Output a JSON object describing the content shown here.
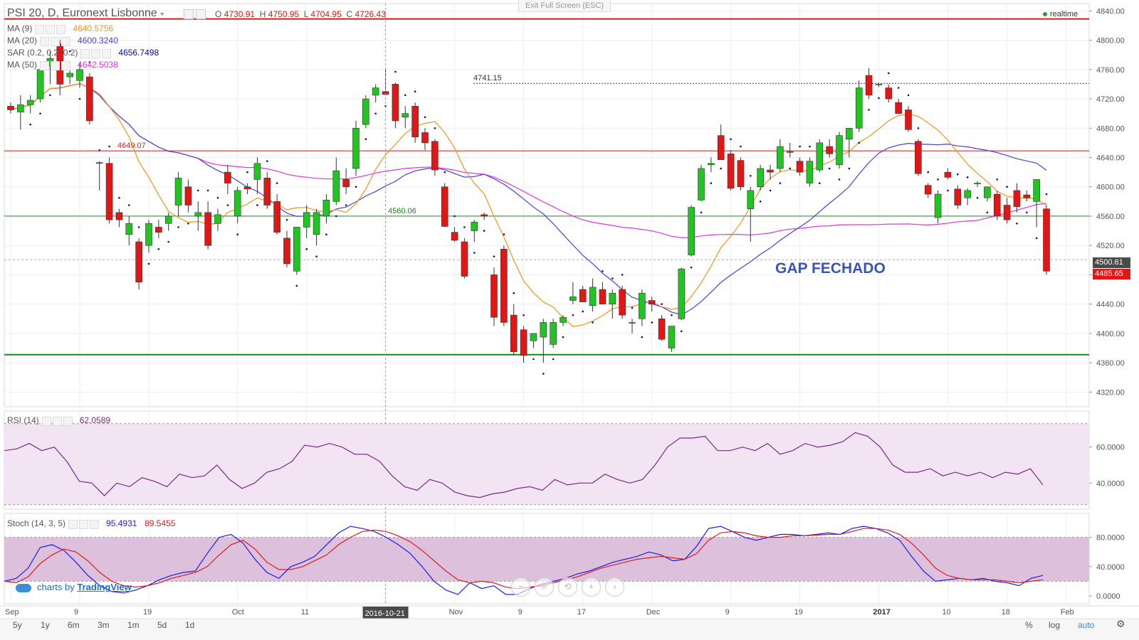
{
  "header": {
    "symbol": "PSI 20, D, Euronext Lisbonne",
    "o_label": "O",
    "o_value": "4730.91",
    "h_label": "H",
    "h_value": "4750.95",
    "l_label": "L",
    "l_value": "4704.95",
    "c_label": "C",
    "c_value": "4726.43"
  },
  "exit_fullscreen": "Exit Full Screen (ESC)",
  "realtime": "realtime",
  "indicators": [
    {
      "label": "MA (9)",
      "value": "4640.5756",
      "color": "#f0951c"
    },
    {
      "label": "MA (20)",
      "value": "4600.3240",
      "color": "#4a3fd8"
    },
    {
      "label": "SAR (0.2, 0.2, 0.2)",
      "value": "4656.7498",
      "color": "#0a0aa0"
    },
    {
      "label": "MA (50)",
      "value": "4642.5038",
      "color": "#e233e0"
    }
  ],
  "rsi": {
    "label": "RSI (14)",
    "value": "62.0589",
    "color": "#7a2a8a"
  },
  "stoch": {
    "label": "Stoch (14, 3, 5)",
    "k_value": "95.4931",
    "d_value": "89.5455",
    "k_color": "#1c1cf0",
    "d_color": "#e01c1c"
  },
  "annotation": {
    "gap_text": "GAP FECHADO",
    "hline_high": "4741.15",
    "hline_mid": "4649.07",
    "hline_low": "4560.06"
  },
  "price_tags": {
    "last": "4500.61",
    "current": "4485.65"
  },
  "cursor_date": "2016-10-21",
  "toolbar": {
    "ranges": [
      "5y",
      "1y",
      "6m",
      "3m",
      "1m",
      "5d",
      "1d"
    ],
    "right": [
      "%",
      "log",
      "auto"
    ]
  },
  "branding": {
    "prefix": "charts by",
    "name": "TradingView"
  },
  "colors": {
    "up": "#21c521",
    "down": "#e41515",
    "grid": "#ececec"
  },
  "chart_data": [
    {
      "type": "candlestick",
      "title": "PSI 20, D, Euronext Lisbonne",
      "y_ticks": [
        4320,
        4360,
        4400,
        4440,
        4480,
        4520,
        4560,
        4600,
        4640,
        4680,
        4720,
        4760,
        4800,
        4840
      ],
      "x_tick_labels": [
        "Sep",
        "9",
        "19",
        "Oct",
        "11",
        "Nov",
        "9",
        "17",
        "Dec",
        "9",
        "19",
        "2017",
        "10",
        "18",
        "Feb"
      ],
      "ylim": [
        4300,
        4850
      ],
      "horizontal_lines": [
        4829,
        4741.15,
        4649.07,
        4560.06,
        4371
      ],
      "candles": [
        {
          "o": 4710,
          "h": 4715,
          "l": 4700,
          "c": 4705
        },
        {
          "o": 4702,
          "h": 4725,
          "l": 4678,
          "c": 4712
        },
        {
          "o": 4712,
          "h": 4725,
          "l": 4700,
          "c": 4718
        },
        {
          "o": 4720,
          "h": 4770,
          "l": 4715,
          "c": 4760
        },
        {
          "o": 4765,
          "h": 4785,
          "l": 4740,
          "c": 4775
        },
        {
          "o": 4795,
          "h": 4800,
          "l": 4725,
          "c": 4740
        },
        {
          "o": 4750,
          "h": 4770,
          "l": 4740,
          "c": 4755
        },
        {
          "o": 4745,
          "h": 4770,
          "l": 4735,
          "c": 4760
        },
        {
          "o": 4750,
          "h": 4755,
          "l": 4685,
          "c": 4690
        },
        {
          "o": 4633,
          "h": 4635,
          "l": 4595,
          "c": 4632
        },
        {
          "o": 4632,
          "h": 4640,
          "l": 4550,
          "c": 4555
        },
        {
          "o": 4565,
          "h": 4570,
          "l": 4545,
          "c": 4555
        },
        {
          "o": 4535,
          "h": 4560,
          "l": 4520,
          "c": 4550
        },
        {
          "o": 4525,
          "h": 4530,
          "l": 4460,
          "c": 4470
        },
        {
          "o": 4520,
          "h": 4555,
          "l": 4510,
          "c": 4550
        },
        {
          "o": 4545,
          "h": 4555,
          "l": 4530,
          "c": 4538
        },
        {
          "o": 4550,
          "h": 4565,
          "l": 4540,
          "c": 4560
        },
        {
          "o": 4575,
          "h": 4620,
          "l": 4560,
          "c": 4612
        },
        {
          "o": 4600,
          "h": 4610,
          "l": 4565,
          "c": 4575
        },
        {
          "o": 4560,
          "h": 4580,
          "l": 4540,
          "c": 4565
        },
        {
          "o": 4565,
          "h": 4580,
          "l": 4515,
          "c": 4520
        },
        {
          "o": 4550,
          "h": 4570,
          "l": 4540,
          "c": 4562
        },
        {
          "o": 4620,
          "h": 4630,
          "l": 4590,
          "c": 4605
        },
        {
          "o": 4560,
          "h": 4600,
          "l": 4550,
          "c": 4595
        },
        {
          "o": 4600,
          "h": 4605,
          "l": 4590,
          "c": 4597
        },
        {
          "o": 4610,
          "h": 4640,
          "l": 4590,
          "c": 4632
        },
        {
          "o": 4612,
          "h": 4620,
          "l": 4570,
          "c": 4575
        },
        {
          "o": 4580,
          "h": 4590,
          "l": 4535,
          "c": 4538
        },
        {
          "o": 4530,
          "h": 4540,
          "l": 4490,
          "c": 4495
        },
        {
          "o": 4485,
          "h": 4545,
          "l": 4480,
          "c": 4545
        },
        {
          "o": 4545,
          "h": 4575,
          "l": 4530,
          "c": 4565
        },
        {
          "o": 4535,
          "h": 4570,
          "l": 4520,
          "c": 4565
        },
        {
          "o": 4560,
          "h": 4590,
          "l": 4550,
          "c": 4582
        },
        {
          "o": 4580,
          "h": 4640,
          "l": 4575,
          "c": 4622
        },
        {
          "o": 4610,
          "h": 4625,
          "l": 4590,
          "c": 4600
        },
        {
          "o": 4625,
          "h": 4690,
          "l": 4615,
          "c": 4680
        },
        {
          "o": 4685,
          "h": 4725,
          "l": 4680,
          "c": 4720
        },
        {
          "o": 4725,
          "h": 4740,
          "l": 4715,
          "c": 4735
        },
        {
          "o": 4730,
          "h": 4760,
          "l": 4725,
          "c": 4726
        },
        {
          "o": 4740,
          "h": 4742,
          "l": 4680,
          "c": 4690
        },
        {
          "o": 4695,
          "h": 4710,
          "l": 4680,
          "c": 4700
        },
        {
          "o": 4710,
          "h": 4715,
          "l": 4660,
          "c": 4668
        },
        {
          "o": 4674,
          "h": 4680,
          "l": 4650,
          "c": 4660
        },
        {
          "o": 4662,
          "h": 4665,
          "l": 4615,
          "c": 4623
        },
        {
          "o": 4600,
          "h": 4605,
          "l": 4545,
          "c": 4546
        },
        {
          "o": 4538,
          "h": 4545,
          "l": 4525,
          "c": 4527
        },
        {
          "o": 4525,
          "h": 4530,
          "l": 4475,
          "c": 4478
        },
        {
          "o": 4540,
          "h": 4555,
          "l": 4525,
          "c": 4552
        },
        {
          "o": 4562,
          "h": 4565,
          "l": 4555,
          "c": 4560
        },
        {
          "o": 4480,
          "h": 4490,
          "l": 4410,
          "c": 4422
        },
        {
          "o": 4515,
          "h": 4520,
          "l": 4410,
          "c": 4415
        },
        {
          "o": 4425,
          "h": 4440,
          "l": 4370,
          "c": 4375
        },
        {
          "o": 4405,
          "h": 4410,
          "l": 4360,
          "c": 4370
        },
        {
          "o": 4390,
          "h": 4400,
          "l": 4380,
          "c": 4400
        },
        {
          "o": 4395,
          "h": 4420,
          "l": 4360,
          "c": 4415
        },
        {
          "o": 4385,
          "h": 4420,
          "l": 4380,
          "c": 4415
        },
        {
          "o": 4415,
          "h": 4425,
          "l": 4410,
          "c": 4422
        },
        {
          "o": 4445,
          "h": 4470,
          "l": 4440,
          "c": 4450
        },
        {
          "o": 4460,
          "h": 4465,
          "l": 4445,
          "c": 4443
        },
        {
          "o": 4438,
          "h": 4475,
          "l": 4430,
          "c": 4463
        },
        {
          "o": 4460,
          "h": 4470,
          "l": 4440,
          "c": 4440
        },
        {
          "o": 4440,
          "h": 4460,
          "l": 4420,
          "c": 4455
        },
        {
          "o": 4460,
          "h": 4465,
          "l": 4420,
          "c": 4425
        },
        {
          "o": 4414,
          "h": 4420,
          "l": 4400,
          "c": 4415
        },
        {
          "o": 4420,
          "h": 4460,
          "l": 4410,
          "c": 4455
        },
        {
          "o": 4445,
          "h": 4450,
          "l": 4430,
          "c": 4440
        },
        {
          "o": 4420,
          "h": 4425,
          "l": 4390,
          "c": 4392
        },
        {
          "o": 4380,
          "h": 4410,
          "l": 4375,
          "c": 4410
        },
        {
          "o": 4420,
          "h": 4490,
          "l": 4418,
          "c": 4488
        },
        {
          "o": 4507,
          "h": 4575,
          "l": 4505,
          "c": 4572
        },
        {
          "o": 4582,
          "h": 4630,
          "l": 4580,
          "c": 4625
        },
        {
          "o": 4630,
          "h": 4640,
          "l": 4620,
          "c": 4632
        },
        {
          "o": 4670,
          "h": 4685,
          "l": 4640,
          "c": 4637
        },
        {
          "o": 4645,
          "h": 4650,
          "l": 4595,
          "c": 4598
        },
        {
          "o": 4636,
          "h": 4640,
          "l": 4595,
          "c": 4600
        },
        {
          "o": 4570,
          "h": 4600,
          "l": 4525,
          "c": 4595
        },
        {
          "o": 4600,
          "h": 4630,
          "l": 4595,
          "c": 4625
        },
        {
          "o": 4623,
          "h": 4630,
          "l": 4610,
          "c": 4620
        },
        {
          "o": 4625,
          "h": 4665,
          "l": 4620,
          "c": 4655
        },
        {
          "o": 4648,
          "h": 4660,
          "l": 4640,
          "c": 4647
        },
        {
          "o": 4635,
          "h": 4640,
          "l": 4615,
          "c": 4620
        },
        {
          "o": 4605,
          "h": 4640,
          "l": 4600,
          "c": 4635
        },
        {
          "o": 4623,
          "h": 4665,
          "l": 4620,
          "c": 4660
        },
        {
          "o": 4655,
          "h": 4665,
          "l": 4640,
          "c": 4645
        },
        {
          "o": 4630,
          "h": 4675,
          "l": 4625,
          "c": 4670
        },
        {
          "o": 4665,
          "h": 4680,
          "l": 4640,
          "c": 4680
        },
        {
          "o": 4680,
          "h": 4745,
          "l": 4675,
          "c": 4735
        },
        {
          "o": 4752,
          "h": 4762,
          "l": 4720,
          "c": 4725
        },
        {
          "o": 4740,
          "h": 4742,
          "l": 4736,
          "c": 4740
        },
        {
          "o": 4735,
          "h": 4740,
          "l": 4715,
          "c": 4720
        },
        {
          "o": 4715,
          "h": 4720,
          "l": 4700,
          "c": 4700
        },
        {
          "o": 4705,
          "h": 4710,
          "l": 4675,
          "c": 4678
        },
        {
          "o": 4662,
          "h": 4665,
          "l": 4615,
          "c": 4618
        },
        {
          "o": 4602,
          "h": 4605,
          "l": 4585,
          "c": 4590
        },
        {
          "o": 4558,
          "h": 4595,
          "l": 4550,
          "c": 4590
        },
        {
          "o": 4620,
          "h": 4625,
          "l": 4610,
          "c": 4613
        },
        {
          "o": 4597,
          "h": 4602,
          "l": 4570,
          "c": 4575
        },
        {
          "o": 4585,
          "h": 4598,
          "l": 4575,
          "c": 4595
        },
        {
          "o": 4604,
          "h": 4608,
          "l": 4600,
          "c": 4605
        },
        {
          "o": 4585,
          "h": 4600,
          "l": 4580,
          "c": 4600
        },
        {
          "o": 4590,
          "h": 4595,
          "l": 4555,
          "c": 4560
        },
        {
          "o": 4575,
          "h": 4585,
          "l": 4550,
          "c": 4555
        },
        {
          "o": 4595,
          "h": 4605,
          "l": 4565,
          "c": 4573
        },
        {
          "o": 4589,
          "h": 4595,
          "l": 4580,
          "c": 4585
        },
        {
          "o": 4580,
          "h": 4610,
          "l": 4545,
          "c": 4610
        },
        {
          "o": 4570,
          "h": 4575,
          "l": 4480,
          "c": 4485
        }
      ]
    },
    {
      "type": "line",
      "title": "RSI (14)",
      "y_ticks": [
        40,
        60
      ],
      "band": [
        28,
        73
      ],
      "values": [
        58,
        59,
        62,
        58,
        60,
        52,
        41,
        40,
        33,
        40,
        38,
        43,
        41,
        38,
        45,
        43,
        44,
        50,
        42,
        37,
        40,
        46,
        48,
        52,
        61,
        60,
        62,
        60,
        56,
        56,
        52,
        44,
        38,
        36,
        42,
        40,
        35,
        33,
        32,
        34,
        35,
        37,
        38,
        36,
        42,
        39,
        40,
        40,
        45,
        42,
        40,
        42,
        50,
        60,
        65,
        65,
        66,
        58,
        58,
        60,
        58,
        62,
        56,
        58,
        62,
        60,
        61,
        63,
        68,
        66,
        60,
        50,
        46,
        46,
        48,
        44,
        46,
        44,
        46,
        43,
        46,
        45,
        48,
        39
      ]
    },
    {
      "type": "line",
      "title": "Stoch (14, 3, 5)",
      "y_ticks": [
        0,
        40,
        80
      ],
      "band": [
        20,
        80
      ],
      "series": [
        {
          "name": "%K",
          "color": "#1c1cf0",
          "values": [
            20,
            24,
            38,
            66,
            70,
            62,
            46,
            28,
            14,
            6,
            4,
            8,
            14,
            22,
            28,
            32,
            34,
            58,
            80,
            84,
            72,
            50,
            32,
            24,
            40,
            46,
            54,
            70,
            86,
            95,
            92,
            88,
            80,
            70,
            58,
            40,
            20,
            8,
            2,
            18,
            10,
            14,
            2,
            2,
            10,
            16,
            20,
            24,
            30,
            34,
            40,
            46,
            50,
            54,
            60,
            56,
            48,
            50,
            68,
            92,
            95,
            88,
            80,
            76,
            80,
            84,
            84,
            82,
            84,
            86,
            84,
            92,
            95,
            92,
            86,
            76,
            54,
            34,
            20,
            22,
            24,
            22,
            24,
            20,
            18,
            14,
            24,
            28
          ]
        },
        {
          "name": "%D",
          "color": "#e01c1c",
          "values": [
            20,
            18,
            26,
            44,
            56,
            64,
            60,
            48,
            32,
            20,
            14,
            12,
            14,
            18,
            24,
            28,
            32,
            40,
            56,
            70,
            76,
            64,
            46,
            36,
            36,
            40,
            48,
            56,
            70,
            80,
            88,
            90,
            88,
            82,
            74,
            62,
            48,
            34,
            22,
            18,
            20,
            18,
            12,
            10,
            12,
            14,
            18,
            22,
            26,
            32,
            38,
            42,
            46,
            50,
            52,
            54,
            52,
            50,
            58,
            76,
            86,
            88,
            86,
            82,
            80,
            80,
            82,
            82,
            83,
            84,
            84,
            88,
            92,
            92,
            90,
            84,
            72,
            56,
            38,
            28,
            24,
            22,
            22,
            22,
            20,
            18,
            20,
            22
          ]
        }
      ]
    }
  ]
}
